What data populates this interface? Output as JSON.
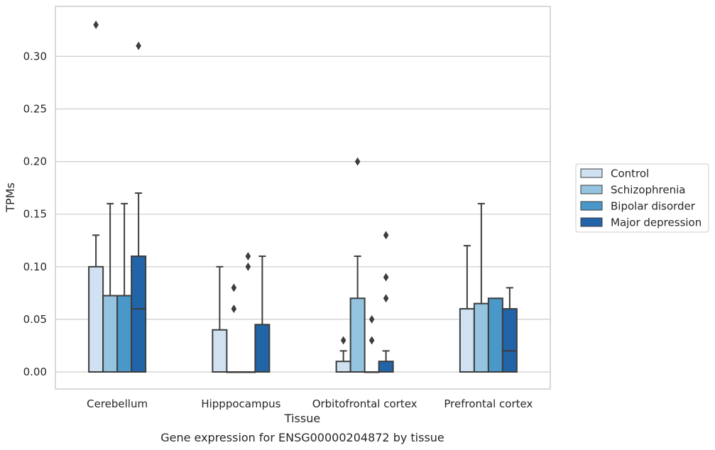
{
  "chart_data": {
    "type": "box",
    "title": "Gene expression for ENSG00000204872 by tissue",
    "xlabel": "Tissue",
    "ylabel": "TPMs",
    "ylim": [
      -0.017,
      0.347
    ],
    "yticks": [
      "0.00",
      "0.05",
      "0.10",
      "0.15",
      "0.20",
      "0.25",
      "0.30"
    ],
    "grid": true,
    "legend_position": "right",
    "categories": [
      "Cerebellum",
      "Hipppocampus",
      "Orbitofrontal cortex",
      "Prefrontal cortex"
    ],
    "series": [
      {
        "name": "Control",
        "color": "#d0e1f2",
        "boxes": [
          {
            "whislo": 0.0,
            "q1": 0.0,
            "med": 0.0,
            "q3": 0.1,
            "whishi": 0.13,
            "fliers": [
              0.33
            ]
          },
          {
            "whislo": 0.0,
            "q1": 0.0,
            "med": 0.0,
            "q3": 0.04,
            "whishi": 0.1,
            "fliers": []
          },
          {
            "whislo": 0.0,
            "q1": 0.0,
            "med": 0.0,
            "q3": 0.01,
            "whishi": 0.02,
            "fliers": [
              0.03
            ]
          },
          {
            "whislo": 0.0,
            "q1": 0.0,
            "med": 0.0,
            "q3": 0.06,
            "whishi": 0.12,
            "fliers": []
          }
        ]
      },
      {
        "name": "Schizophrenia",
        "color": "#94c4df",
        "boxes": [
          {
            "whislo": 0.0,
            "q1": 0.0,
            "med": 0.0,
            "q3": 0.0725,
            "whishi": 0.16,
            "fliers": []
          },
          {
            "whislo": 0.0,
            "q1": 0.0,
            "med": 0.0,
            "q3": 0.0,
            "whishi": 0.0,
            "fliers": [
              0.06,
              0.08
            ]
          },
          {
            "whislo": 0.0,
            "q1": 0.0,
            "med": 0.0,
            "q3": 0.07,
            "whishi": 0.11,
            "fliers": [
              0.2
            ]
          },
          {
            "whislo": 0.0,
            "q1": 0.0,
            "med": 0.0,
            "q3": 0.065,
            "whishi": 0.16,
            "fliers": []
          }
        ]
      },
      {
        "name": "Bipolar disorder",
        "color": "#4a98c9",
        "boxes": [
          {
            "whislo": 0.0,
            "q1": 0.0,
            "med": 0.0,
            "q3": 0.0725,
            "whishi": 0.16,
            "fliers": []
          },
          {
            "whislo": 0.0,
            "q1": 0.0,
            "med": 0.0,
            "q3": 0.0,
            "whishi": 0.0,
            "fliers": [
              0.1,
              0.11
            ]
          },
          {
            "whislo": 0.0,
            "q1": 0.0,
            "med": 0.0,
            "q3": 0.0,
            "whishi": 0.0,
            "fliers": [
              0.03,
              0.05
            ]
          },
          {
            "whislo": 0.0,
            "q1": 0.0,
            "med": 0.0,
            "q3": 0.07,
            "whishi": 0.07,
            "fliers": []
          }
        ]
      },
      {
        "name": "Major depression",
        "color": "#2264a8",
        "boxes": [
          {
            "whislo": 0.0,
            "q1": 0.0,
            "med": 0.06,
            "q3": 0.11,
            "whishi": 0.17,
            "fliers": [
              0.31
            ]
          },
          {
            "whislo": 0.0,
            "q1": 0.0,
            "med": 0.0,
            "q3": 0.045,
            "whishi": 0.11,
            "fliers": []
          },
          {
            "whislo": 0.0,
            "q1": 0.0,
            "med": 0.0,
            "q3": 0.01,
            "whishi": 0.02,
            "fliers": [
              0.07,
              0.09,
              0.13
            ]
          },
          {
            "whislo": 0.0,
            "q1": 0.0,
            "med": 0.02,
            "q3": 0.06,
            "whishi": 0.08,
            "fliers": []
          }
        ]
      }
    ]
  }
}
